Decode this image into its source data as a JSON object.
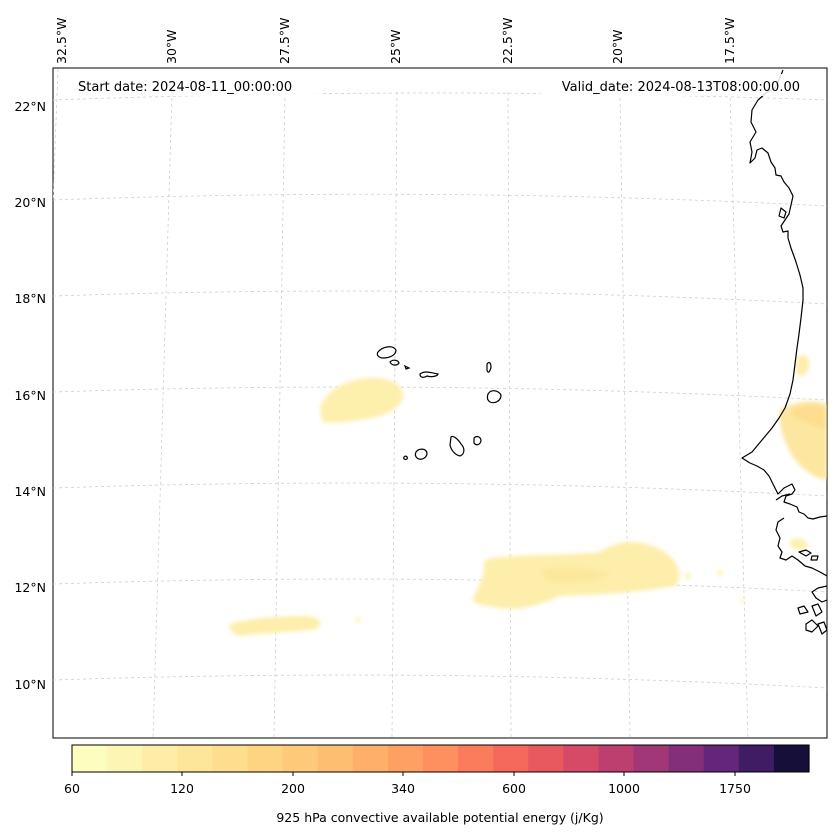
{
  "annotations": {
    "start_date": "Start date: 2024-08-11_00:00:00",
    "valid_date": "Valid_date: 2024-08-13T08:00:00.00"
  },
  "axes": {
    "longitude_labels": [
      "32.5°W",
      "30°W",
      "27.5°W",
      "25°W",
      "22.5°W",
      "20°W",
      "17.5°W"
    ],
    "latitude_labels": [
      "22°N",
      "20°N",
      "18°N",
      "16°N",
      "14°N",
      "12°N",
      "10°N"
    ]
  },
  "colorbar": {
    "label": "925 hPa convective available potential energy (j/Kg)",
    "tick_labels": [
      "60",
      "120",
      "200",
      "340",
      "600",
      "1000",
      "1750"
    ],
    "colors": [
      "#fcfdbf",
      "#fdf5b3",
      "#fdeda6",
      "#fde59a",
      "#fddd8e",
      "#fed483",
      "#feca79",
      "#febe71",
      "#feb06a",
      "#fea064",
      "#fe8f5e",
      "#fb7c5c",
      "#f4695c",
      "#e8585f",
      "#d54a67",
      "#bd3f70",
      "#a13776",
      "#842f79",
      "#64267a",
      "#3f1c64",
      "#160f3a"
    ]
  },
  "chart_data": {
    "type": "map",
    "variable": "925 hPa convective available potential energy",
    "units": "j/Kg",
    "colorbar_ticks": [
      60,
      120,
      200,
      340,
      600,
      1000,
      1750
    ],
    "lon_range": [
      -33,
      -16
    ],
    "lat_range": [
      9,
      22.7
    ],
    "features": [
      "Cape Verde islands",
      "West African coastline (Senegal, Mauritania)"
    ]
  }
}
